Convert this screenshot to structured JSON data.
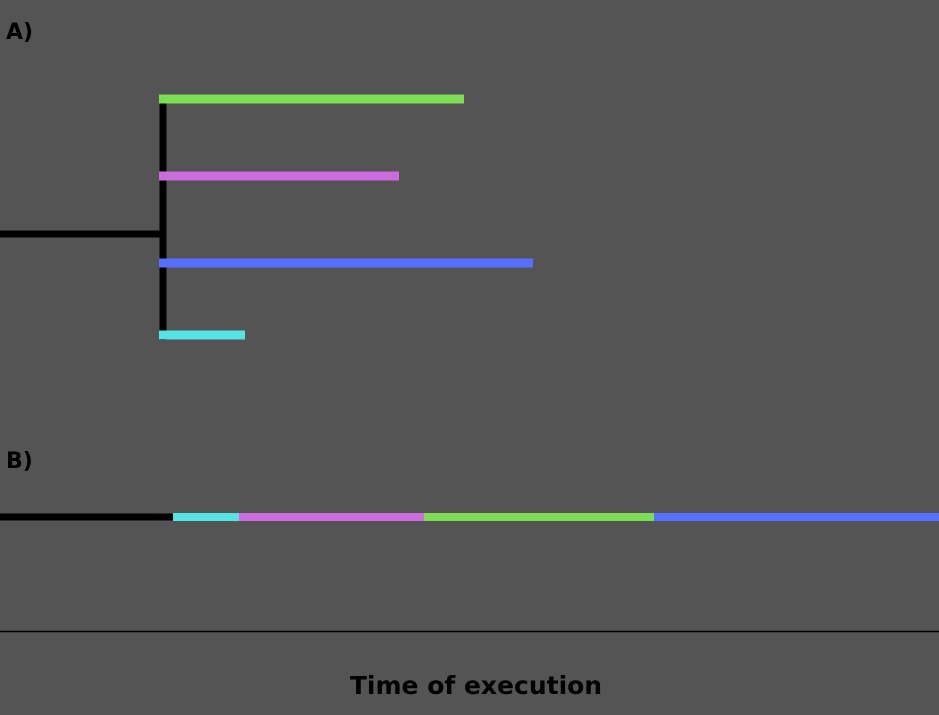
{
  "panel_a": {
    "label": "A)",
    "trunk_color": "#000000",
    "tasks": [
      {
        "color": "#7ddd55"
      },
      {
        "color": "#cc6ce0"
      },
      {
        "color": "#5570ff"
      },
      {
        "color": "#55e3e3"
      }
    ]
  },
  "panel_b": {
    "label": "B)",
    "trunk_color": "#000000",
    "segments": [
      {
        "color": "#55e3e3"
      },
      {
        "color": "#cc6ce0"
      },
      {
        "color": "#7ddd55"
      },
      {
        "color": "#5570ff"
      }
    ]
  },
  "axis": {
    "label": "Time of execution",
    "line_color": "#000000"
  }
}
